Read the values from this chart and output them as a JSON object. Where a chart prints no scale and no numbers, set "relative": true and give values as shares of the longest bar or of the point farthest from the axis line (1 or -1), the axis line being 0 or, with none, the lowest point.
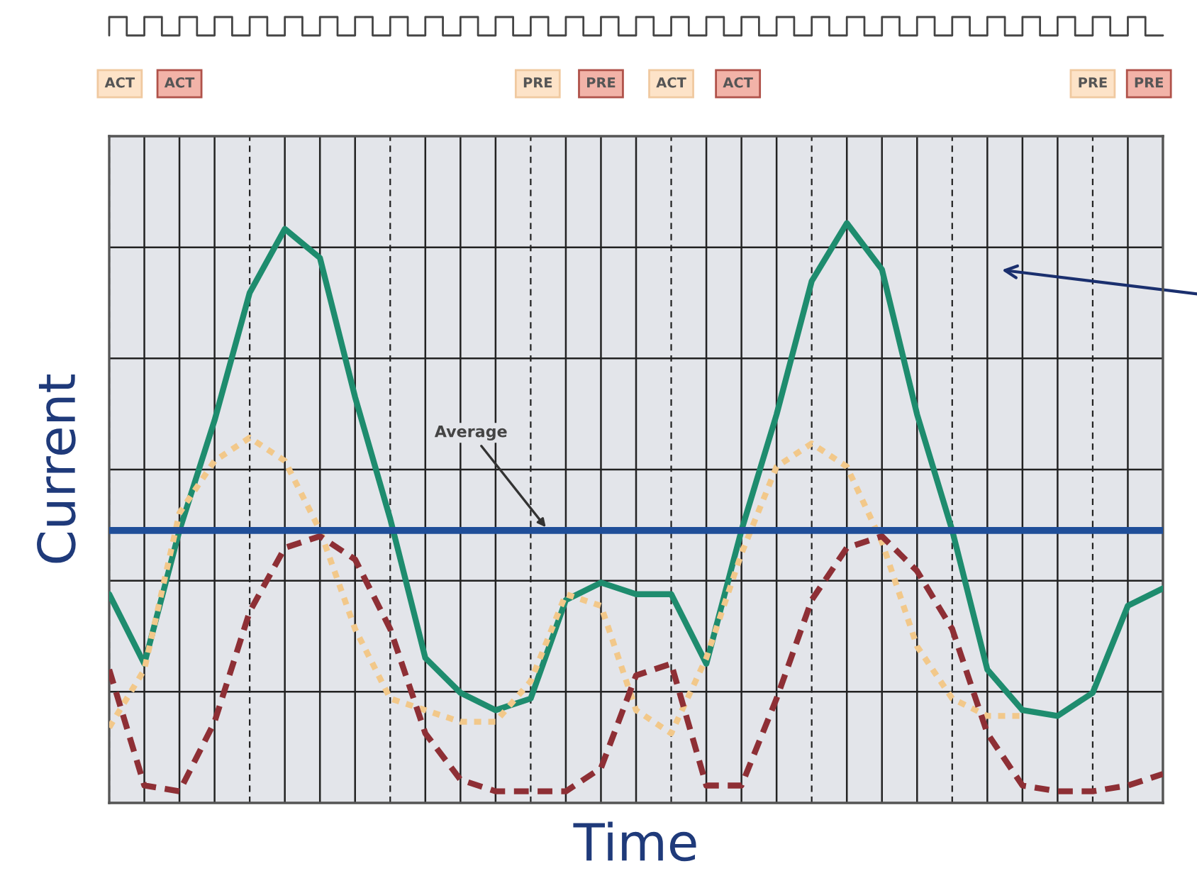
{
  "chart_data": {
    "type": "line",
    "relative": true,
    "xlabel": "Time",
    "ylabel": "Current",
    "grid": true,
    "categories": [
      null,
      null,
      null,
      null,
      null,
      null,
      null,
      null,
      null,
      null,
      null,
      null,
      null,
      null,
      null,
      null,
      null,
      null,
      null,
      null,
      null,
      null,
      null,
      null,
      null,
      null,
      null,
      null,
      null,
      null,
      null
    ],
    "series": [
      {
        "color": "#1e8c6e",
        "line_style": "solid",
        "values": [
          0.36,
          0.24,
          0.47,
          0.66,
          0.88,
          0.99,
          0.94,
          0.7,
          0.49,
          0.25,
          0.19,
          0.16,
          0.18,
          0.35,
          0.38,
          0.36,
          0.36,
          0.24,
          0.47,
          0.67,
          0.9,
          1.0,
          0.92,
          0.67,
          0.47,
          0.23,
          0.16,
          0.15,
          0.19,
          0.34,
          0.37
        ]
      },
      {
        "color": "#f2c88a",
        "line_style": "dotted",
        "values": [
          0.13,
          0.23,
          0.5,
          0.59,
          0.63,
          0.59,
          0.47,
          0.3,
          0.18,
          0.16,
          0.14,
          0.14,
          0.21,
          0.36,
          0.34,
          0.16,
          0.12,
          0.25,
          0.43,
          0.58,
          0.62,
          0.58,
          0.45,
          0.27,
          0.18,
          0.15,
          0.15,
          null,
          null,
          null,
          null
        ]
      },
      {
        "color": "#8e2f35",
        "line_style": "dashed",
        "values": [
          0.23,
          0.03,
          0.02,
          0.14,
          0.33,
          0.44,
          0.46,
          0.42,
          0.3,
          0.12,
          0.04,
          0.02,
          0.02,
          0.02,
          0.06,
          0.22,
          0.24,
          0.03,
          0.03,
          0.18,
          0.35,
          0.44,
          0.46,
          0.4,
          0.3,
          0.12,
          0.03,
          0.02,
          0.02,
          0.03,
          0.05
        ]
      }
    ],
    "ref_lines": [
      {
        "axis": "y",
        "value": 0.47,
        "label": "Average",
        "color": "#1f4e99"
      }
    ],
    "annotations": [
      "ACT",
      "ACT",
      "PRE",
      "PRE",
      "ACT",
      "ACT",
      "PRE",
      "PRE"
    ]
  }
}
